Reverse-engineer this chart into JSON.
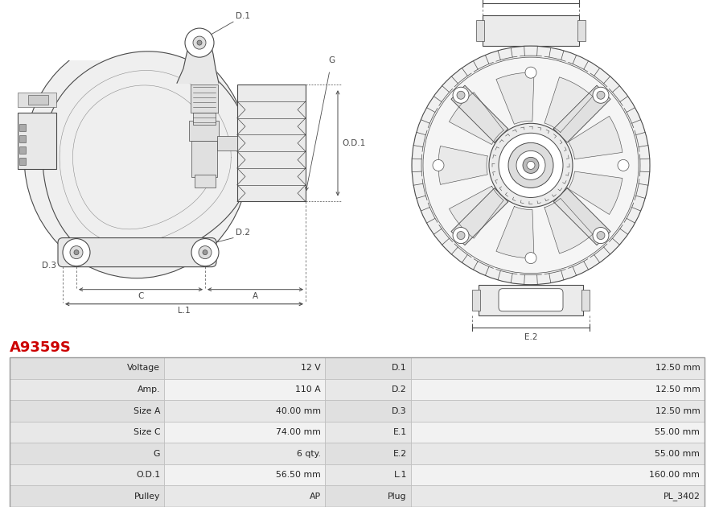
{
  "title": "A9359S",
  "title_color": "#cc0000",
  "table_rows": [
    [
      "Voltage",
      "12 V",
      "D.1",
      "12.50 mm"
    ],
    [
      "Amp.",
      "110 A",
      "D.2",
      "12.50 mm"
    ],
    [
      "Size A",
      "40.00 mm",
      "D.3",
      "12.50 mm"
    ],
    [
      "Size C",
      "74.00 mm",
      "E.1",
      "55.00 mm"
    ],
    [
      "G",
      "6 qty.",
      "E.2",
      "55.00 mm"
    ],
    [
      "O.D.1",
      "56.50 mm",
      "L.1",
      "160.00 mm"
    ],
    [
      "Pulley",
      "AP",
      "Plug",
      "PL_3402"
    ]
  ],
  "table_bg_label": "#e8e8e8",
  "table_bg_value": "#f2f2f2",
  "table_border": "#bbbbbb",
  "diagram_bg": "#ffffff",
  "lc": "#4a4a4a",
  "lc2": "#888888"
}
